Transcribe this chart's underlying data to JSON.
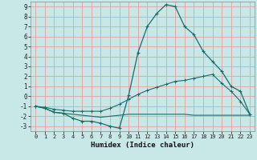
{
  "title": "",
  "xlabel": "Humidex (Indice chaleur)",
  "bg_color": "#c8e8e8",
  "grid_color": "#e8a0a0",
  "line_color1": "#1a6b6b",
  "line_color2": "#1a6b6b",
  "line_color3": "#1a6b6b",
  "xlim": [
    -0.5,
    23.5
  ],
  "ylim": [
    -3.5,
    9.5
  ],
  "xticks": [
    0,
    1,
    2,
    3,
    4,
    5,
    6,
    7,
    8,
    9,
    10,
    11,
    12,
    13,
    14,
    15,
    16,
    17,
    18,
    19,
    20,
    21,
    22,
    23
  ],
  "yticks": [
    -3,
    -2,
    -1,
    0,
    1,
    2,
    3,
    4,
    5,
    6,
    7,
    8,
    9
  ],
  "curve1_x": [
    0,
    1,
    2,
    3,
    4,
    5,
    6,
    7,
    8,
    9,
    10,
    11,
    12,
    13,
    14,
    15,
    16,
    17,
    18,
    19,
    20,
    21,
    22,
    23
  ],
  "curve1_y": [
    -1.0,
    -1.2,
    -1.6,
    -1.7,
    -2.2,
    -2.5,
    -2.5,
    -2.7,
    -3.0,
    -3.2,
    0.1,
    4.4,
    7.0,
    8.3,
    9.2,
    9.0,
    7.0,
    6.2,
    4.5,
    3.5,
    2.5,
    1.0,
    0.5,
    -1.8
  ],
  "curve2_x": [
    0,
    1,
    2,
    3,
    4,
    5,
    6,
    7,
    8,
    9,
    10,
    11,
    12,
    13,
    14,
    15,
    16,
    17,
    18,
    19,
    20,
    21,
    22,
    23
  ],
  "curve2_y": [
    -1.0,
    -1.2,
    -1.6,
    -1.7,
    -1.8,
    -1.9,
    -2.0,
    -2.1,
    -2.0,
    -1.9,
    -1.8,
    -1.8,
    -1.8,
    -1.8,
    -1.8,
    -1.8,
    -1.8,
    -1.9,
    -1.9,
    -1.9,
    -1.9,
    -1.9,
    -1.9,
    -1.9
  ],
  "curve3_x": [
    0,
    1,
    2,
    3,
    4,
    5,
    6,
    7,
    8,
    9,
    10,
    11,
    12,
    13,
    14,
    15,
    16,
    17,
    18,
    19,
    20,
    21,
    22,
    23
  ],
  "curve3_y": [
    -1.0,
    -1.1,
    -1.3,
    -1.4,
    -1.5,
    -1.5,
    -1.5,
    -1.5,
    -1.2,
    -0.8,
    -0.3,
    0.2,
    0.6,
    0.9,
    1.2,
    1.5,
    1.6,
    1.8,
    2.0,
    2.2,
    1.3,
    0.5,
    -0.5,
    -1.8
  ]
}
